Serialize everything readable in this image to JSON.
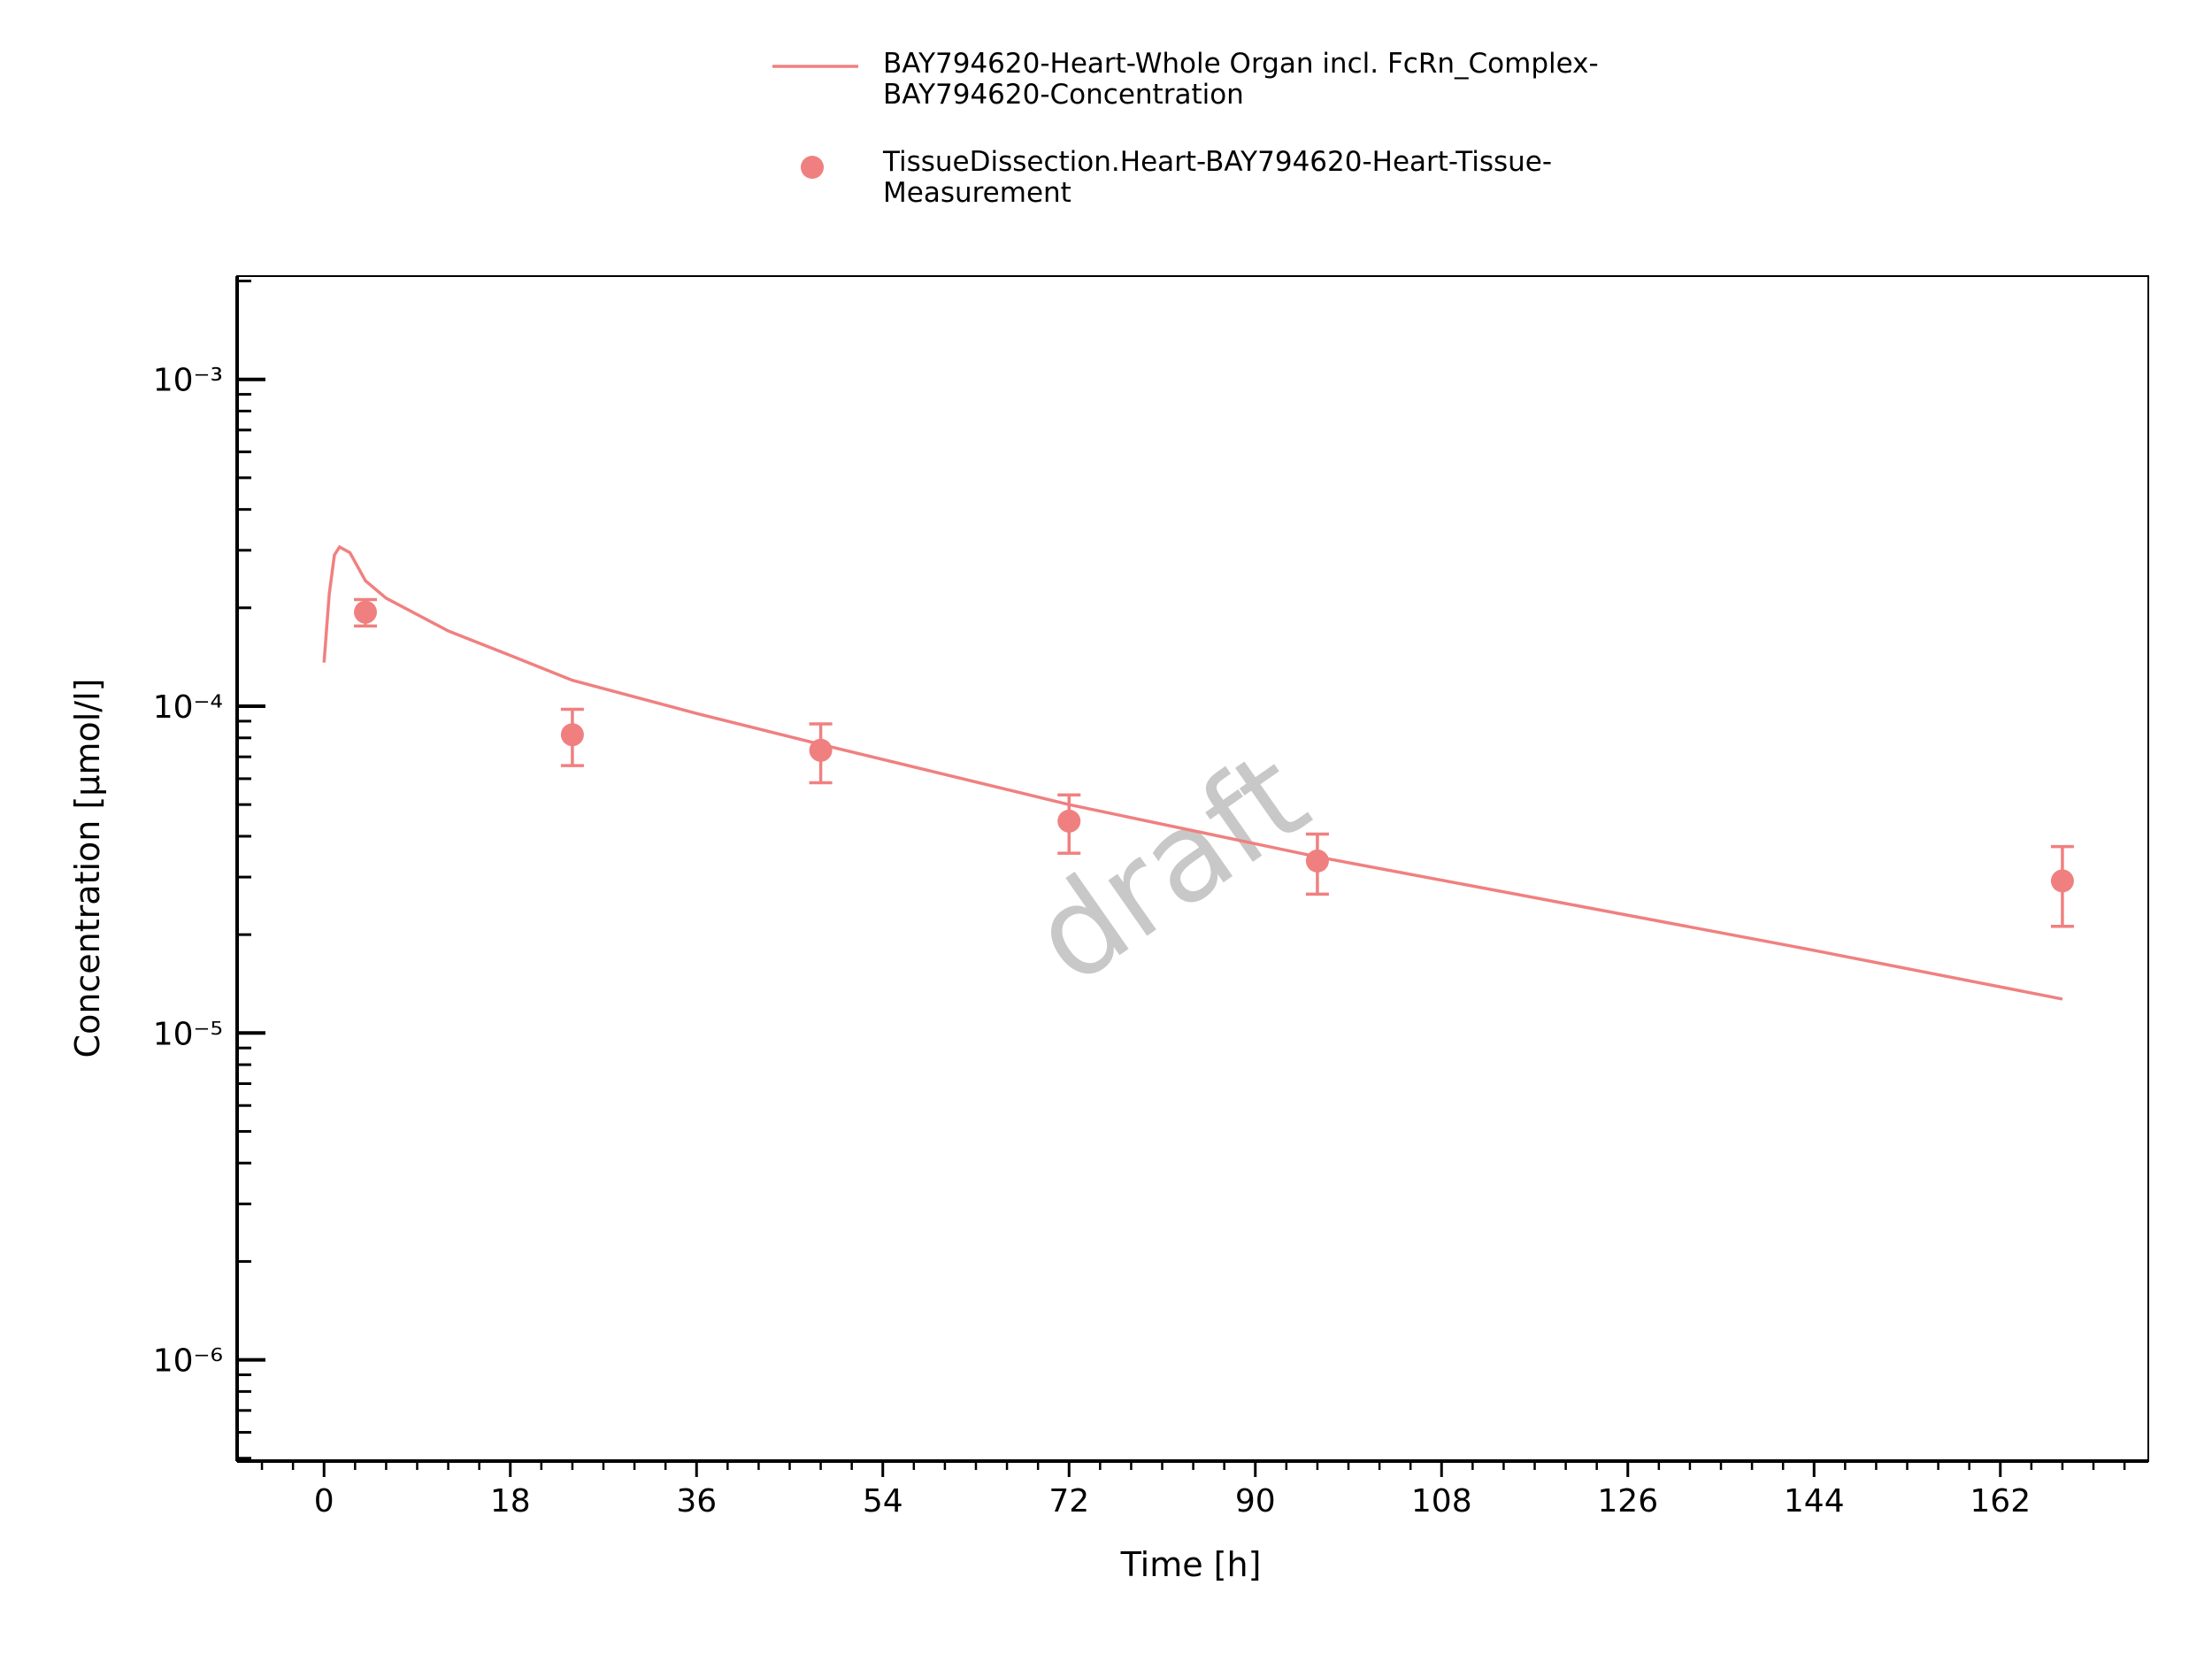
{
  "chart_data": {
    "type": "line",
    "xlabel": "Time [h]",
    "ylabel": "Concentration [µmol/l]",
    "watermark": "draft",
    "log_y": true,
    "xlim": [
      -8.4,
      176.3
    ],
    "ylim": [
      4.9e-07,
      0.00207
    ],
    "xticks": [
      0,
      18,
      36,
      54,
      72,
      90,
      108,
      126,
      144,
      162
    ],
    "xminorticks": [
      -6,
      -3,
      3,
      6,
      9,
      12,
      15,
      21,
      24,
      27,
      30,
      33,
      39,
      42,
      45,
      48,
      51,
      57,
      60,
      63,
      66,
      69,
      75,
      78,
      81,
      84,
      87,
      93,
      96,
      99,
      102,
      105,
      111,
      114,
      117,
      120,
      123,
      129,
      132,
      135,
      138,
      141,
      147,
      150,
      153,
      156,
      159,
      165,
      168,
      171,
      174
    ],
    "yticks": [
      {
        "value": 1e-06,
        "label": "10⁻⁶"
      },
      {
        "value": 1e-05,
        "label": "10⁻⁵"
      },
      {
        "value": 0.0001,
        "label": "10⁻⁴"
      },
      {
        "value": 0.001,
        "label": "10⁻³"
      }
    ],
    "yminorticks": [
      5e-07,
      6e-07,
      7e-07,
      8e-07,
      9e-07,
      2e-06,
      3e-06,
      4e-06,
      5e-06,
      6e-06,
      7e-06,
      8e-06,
      9e-06,
      2e-05,
      3e-05,
      4e-05,
      5e-05,
      6e-05,
      7e-05,
      8e-05,
      9e-05,
      0.0002,
      0.0003,
      0.0004,
      0.0005,
      0.0006,
      0.0007,
      0.0008,
      0.0009,
      0.002
    ],
    "series": [
      {
        "name": "BAY794620-Heart-Whole Organ incl. FcRn_Complex-BAY794620-Concentration",
        "type": "line",
        "color": "#f08080",
        "x": [
          0,
          0.5,
          1,
          1.5,
          2.5,
          4,
          6,
          12,
          18,
          24,
          36,
          48,
          72,
          96,
          120,
          144,
          168
        ],
        "values": [
          0.000136,
          0.00022,
          0.00029,
          0.000307,
          0.000295,
          0.000242,
          0.000214,
          0.00017,
          0.000143,
          0.00012,
          9.5e-05,
          7.64e-05,
          5e-05,
          3.46e-05,
          2.49e-05,
          1.79e-05,
          1.27e-05
        ]
      },
      {
        "name": "TissueDissection.Heart-BAY794620-Heart-Tissue-Measurement",
        "type": "scatter",
        "color": "#f08080",
        "x": [
          4,
          24,
          48,
          72,
          96,
          168
        ],
        "values": [
          0.000194,
          8.18e-05,
          7.33e-05,
          4.45e-05,
          3.36e-05,
          2.92e-05
        ],
        "errors": [
          1.8e-05,
          1.6e-05,
          1.5e-05,
          9e-06,
          7e-06,
          8e-06
        ]
      }
    ]
  }
}
